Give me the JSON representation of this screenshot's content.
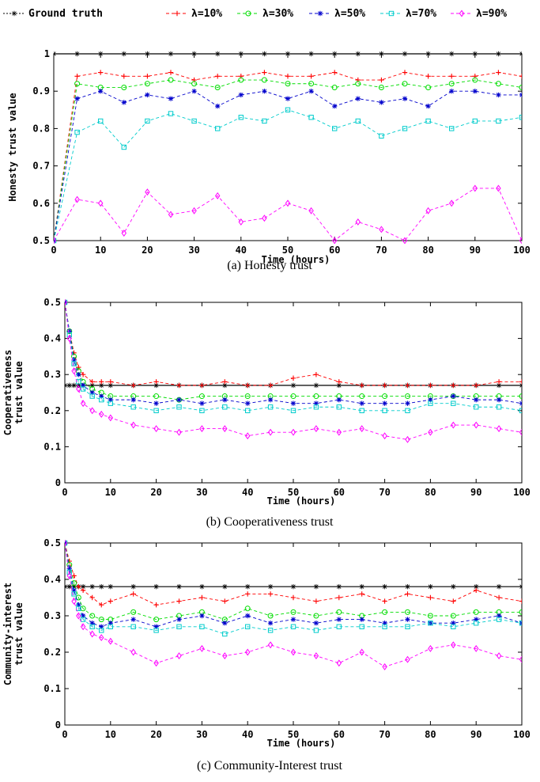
{
  "legend": {
    "entries": [
      "Ground truth",
      "λ=10%",
      "λ=30%",
      "λ=50%",
      "λ=70%",
      "λ=90%"
    ]
  },
  "series_style": [
    {
      "color": "#000000",
      "marker": "star"
    },
    {
      "color": "#ff0000",
      "marker": "plus"
    },
    {
      "color": "#00dd00",
      "marker": "circle"
    },
    {
      "color": "#0000cc",
      "marker": "asterisk"
    },
    {
      "color": "#00cccc",
      "marker": "square"
    },
    {
      "color": "#ff00ff",
      "marker": "diamond"
    }
  ],
  "chart_data": [
    {
      "type": "line",
      "caption": "(a) Honesty trust",
      "xlabel": "Time (hours)",
      "ylabel": [
        "Honesty trust value"
      ],
      "xlim": [
        0,
        100
      ],
      "ylim": [
        0.5,
        1.0
      ],
      "xticks": [
        0,
        10,
        20,
        30,
        40,
        50,
        60,
        70,
        80,
        90,
        100
      ],
      "xtick_labels": [
        "0",
        "10",
        "20",
        "30",
        "40",
        "50",
        "60",
        "70",
        "80",
        "90",
        "100"
      ],
      "yticks": [
        0.5,
        0.6,
        0.7,
        0.8,
        0.9,
        1
      ],
      "ytick_labels": [
        "0.5",
        "0.6",
        "0.7",
        "0.8",
        "0.9",
        "1"
      ],
      "x": [
        0,
        5,
        10,
        15,
        20,
        25,
        30,
        35,
        40,
        45,
        50,
        55,
        60,
        65,
        70,
        75,
        80,
        85,
        90,
        95,
        100
      ],
      "series": [
        {
          "name": "Ground truth",
          "values": [
            1,
            1,
            1,
            1,
            1,
            1,
            1,
            1,
            1,
            1,
            1,
            1,
            1,
            1,
            1,
            1,
            1,
            1,
            1,
            1,
            1
          ]
        },
        {
          "name": "λ=10%",
          "values": [
            0.5,
            0.94,
            0.95,
            0.94,
            0.94,
            0.95,
            0.93,
            0.94,
            0.94,
            0.95,
            0.94,
            0.94,
            0.95,
            0.93,
            0.93,
            0.95,
            0.94,
            0.94,
            0.94,
            0.95,
            0.94
          ]
        },
        {
          "name": "λ=30%",
          "values": [
            0.5,
            0.92,
            0.91,
            0.91,
            0.92,
            0.93,
            0.92,
            0.91,
            0.93,
            0.93,
            0.92,
            0.92,
            0.91,
            0.92,
            0.91,
            0.92,
            0.91,
            0.92,
            0.93,
            0.92,
            0.91
          ]
        },
        {
          "name": "λ=50%",
          "values": [
            0.5,
            0.88,
            0.9,
            0.87,
            0.89,
            0.88,
            0.9,
            0.86,
            0.89,
            0.9,
            0.88,
            0.9,
            0.86,
            0.88,
            0.87,
            0.88,
            0.86,
            0.9,
            0.9,
            0.89,
            0.89
          ]
        },
        {
          "name": "λ=70%",
          "values": [
            0.5,
            0.79,
            0.82,
            0.75,
            0.82,
            0.84,
            0.82,
            0.8,
            0.83,
            0.82,
            0.85,
            0.83,
            0.8,
            0.82,
            0.78,
            0.8,
            0.82,
            0.8,
            0.82,
            0.82,
            0.83
          ]
        },
        {
          "name": "λ=90%",
          "values": [
            0.5,
            0.61,
            0.6,
            0.52,
            0.63,
            0.57,
            0.58,
            0.62,
            0.55,
            0.56,
            0.6,
            0.58,
            0.5,
            0.55,
            0.53,
            0.5,
            0.58,
            0.6,
            0.64,
            0.64,
            0.5
          ]
        }
      ]
    },
    {
      "type": "line",
      "caption": "(b) Cooperativeness trust",
      "xlabel": "Time (hours)",
      "ylabel": [
        "Cooperativeness",
        "trust value"
      ],
      "xlim": [
        0,
        100
      ],
      "ylim": [
        0,
        0.5
      ],
      "xticks": [
        0,
        10,
        20,
        30,
        40,
        50,
        60,
        70,
        80,
        90,
        100
      ],
      "xtick_labels": [
        "0",
        "10",
        "20",
        "30",
        "40",
        "50",
        "60",
        "70",
        "80",
        "90",
        "100"
      ],
      "yticks": [
        0,
        0.1,
        0.2,
        0.3,
        0.4,
        0.5
      ],
      "ytick_labels": [
        "0",
        "0.1",
        "0.2",
        "0.3",
        "0.4",
        "0.5"
      ],
      "x": [
        0,
        1,
        2,
        3,
        4,
        6,
        8,
        10,
        15,
        20,
        25,
        30,
        35,
        40,
        45,
        50,
        55,
        60,
        65,
        70,
        75,
        80,
        85,
        90,
        95,
        100
      ],
      "series": [
        {
          "name": "Ground truth",
          "values": [
            0.27,
            0.27,
            0.27,
            0.27,
            0.27,
            0.27,
            0.27,
            0.27,
            0.27,
            0.27,
            0.27,
            0.27,
            0.27,
            0.27,
            0.27,
            0.27,
            0.27,
            0.27,
            0.27,
            0.27,
            0.27,
            0.27,
            0.27,
            0.27,
            0.27,
            0.27
          ]
        },
        {
          "name": "λ=10%",
          "values": [
            0.5,
            0.42,
            0.36,
            0.32,
            0.3,
            0.28,
            0.28,
            0.28,
            0.27,
            0.28,
            0.27,
            0.27,
            0.28,
            0.27,
            0.27,
            0.29,
            0.3,
            0.28,
            0.27,
            0.27,
            0.27,
            0.27,
            0.27,
            0.27,
            0.28,
            0.28
          ]
        },
        {
          "name": "λ=30%",
          "values": [
            0.5,
            0.42,
            0.35,
            0.31,
            0.28,
            0.26,
            0.25,
            0.24,
            0.24,
            0.24,
            0.23,
            0.24,
            0.24,
            0.24,
            0.24,
            0.24,
            0.24,
            0.24,
            0.24,
            0.24,
            0.24,
            0.24,
            0.24,
            0.24,
            0.24,
            0.24
          ]
        },
        {
          "name": "λ=50%",
          "values": [
            0.5,
            0.42,
            0.34,
            0.3,
            0.27,
            0.25,
            0.24,
            0.23,
            0.23,
            0.22,
            0.23,
            0.22,
            0.23,
            0.22,
            0.23,
            0.22,
            0.22,
            0.23,
            0.22,
            0.22,
            0.22,
            0.23,
            0.24,
            0.23,
            0.23,
            0.22
          ]
        },
        {
          "name": "λ=70%",
          "values": [
            0.5,
            0.41,
            0.33,
            0.28,
            0.26,
            0.24,
            0.23,
            0.22,
            0.21,
            0.2,
            0.21,
            0.2,
            0.21,
            0.2,
            0.21,
            0.2,
            0.21,
            0.21,
            0.2,
            0.2,
            0.2,
            0.22,
            0.22,
            0.21,
            0.21,
            0.2
          ]
        },
        {
          "name": "λ=90%",
          "values": [
            0.5,
            0.4,
            0.31,
            0.26,
            0.22,
            0.2,
            0.19,
            0.18,
            0.16,
            0.15,
            0.14,
            0.15,
            0.15,
            0.13,
            0.14,
            0.14,
            0.15,
            0.14,
            0.15,
            0.13,
            0.12,
            0.14,
            0.16,
            0.16,
            0.15,
            0.14
          ]
        }
      ]
    },
    {
      "type": "line",
      "caption": "(c) Community-Interest trust",
      "xlabel": "Time (hours)",
      "ylabel": [
        "Community-interest",
        "trust value"
      ],
      "xlim": [
        0,
        100
      ],
      "ylim": [
        0,
        0.5
      ],
      "xticks": [
        0,
        10,
        20,
        30,
        40,
        50,
        60,
        70,
        80,
        90,
        100
      ],
      "xtick_labels": [
        "0",
        "10",
        "20",
        "30",
        "40",
        "50",
        "60",
        "70",
        "80",
        "90",
        "100"
      ],
      "yticks": [
        0,
        0.1,
        0.2,
        0.3,
        0.4,
        0.5
      ],
      "ytick_labels": [
        "0",
        "0.1",
        "0.2",
        "0.3",
        "0.4",
        "0.5"
      ],
      "x": [
        0,
        1,
        2,
        3,
        4,
        6,
        8,
        10,
        15,
        20,
        25,
        30,
        35,
        40,
        45,
        50,
        55,
        60,
        65,
        70,
        75,
        80,
        85,
        90,
        95,
        100
      ],
      "series": [
        {
          "name": "Ground truth",
          "values": [
            0.38,
            0.38,
            0.38,
            0.38,
            0.38,
            0.38,
            0.38,
            0.38,
            0.38,
            0.38,
            0.38,
            0.38,
            0.38,
            0.38,
            0.38,
            0.38,
            0.38,
            0.38,
            0.38,
            0.38,
            0.38,
            0.38,
            0.38,
            0.38,
            0.38,
            0.38
          ]
        },
        {
          "name": "λ=10%",
          "values": [
            0.5,
            0.45,
            0.41,
            0.38,
            0.37,
            0.35,
            0.33,
            0.34,
            0.36,
            0.33,
            0.34,
            0.35,
            0.34,
            0.36,
            0.36,
            0.35,
            0.34,
            0.35,
            0.36,
            0.34,
            0.36,
            0.35,
            0.34,
            0.37,
            0.35,
            0.34
          ]
        },
        {
          "name": "λ=30%",
          "values": [
            0.5,
            0.44,
            0.39,
            0.35,
            0.32,
            0.3,
            0.29,
            0.29,
            0.31,
            0.29,
            0.3,
            0.31,
            0.29,
            0.32,
            0.3,
            0.31,
            0.3,
            0.31,
            0.3,
            0.31,
            0.31,
            0.3,
            0.3,
            0.31,
            0.31,
            0.31
          ]
        },
        {
          "name": "λ=50%",
          "values": [
            0.5,
            0.43,
            0.37,
            0.33,
            0.3,
            0.28,
            0.27,
            0.28,
            0.29,
            0.27,
            0.29,
            0.3,
            0.28,
            0.3,
            0.28,
            0.29,
            0.28,
            0.29,
            0.29,
            0.28,
            0.29,
            0.28,
            0.28,
            0.29,
            0.3,
            0.28
          ]
        },
        {
          "name": "λ=70%",
          "values": [
            0.5,
            0.42,
            0.36,
            0.32,
            0.29,
            0.27,
            0.26,
            0.27,
            0.27,
            0.26,
            0.27,
            0.27,
            0.25,
            0.27,
            0.26,
            0.27,
            0.26,
            0.27,
            0.27,
            0.27,
            0.27,
            0.28,
            0.27,
            0.28,
            0.29,
            0.28
          ]
        },
        {
          "name": "λ=90%",
          "values": [
            0.5,
            0.41,
            0.34,
            0.3,
            0.27,
            0.25,
            0.24,
            0.23,
            0.2,
            0.17,
            0.19,
            0.21,
            0.19,
            0.2,
            0.22,
            0.2,
            0.19,
            0.17,
            0.2,
            0.16,
            0.18,
            0.21,
            0.22,
            0.21,
            0.19,
            0.18
          ]
        }
      ]
    }
  ]
}
